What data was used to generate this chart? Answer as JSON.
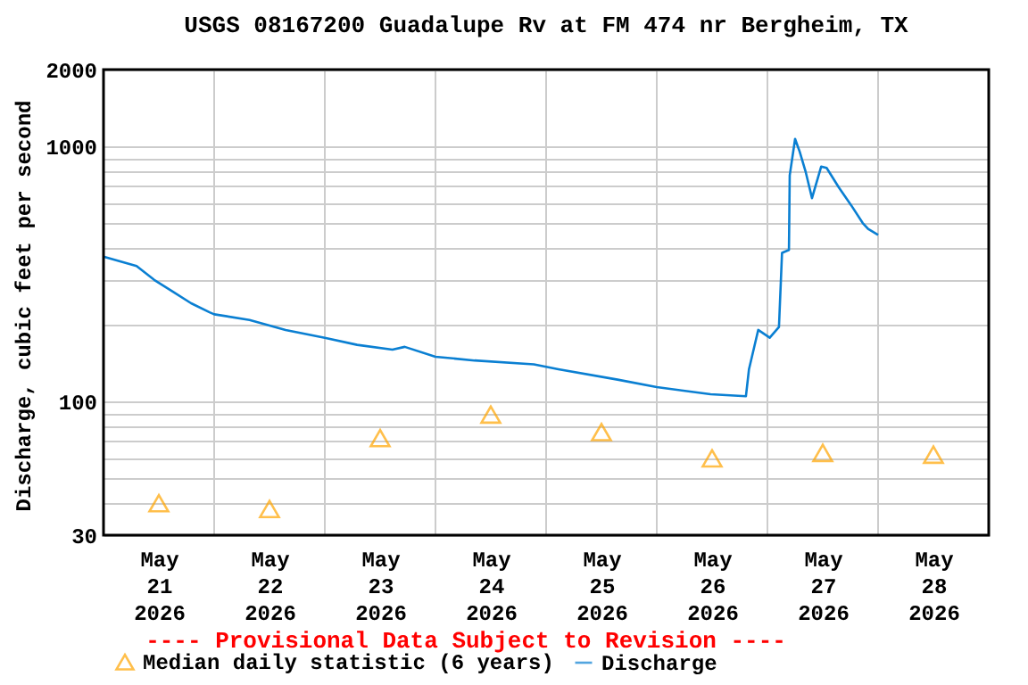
{
  "chart_data": {
    "type": "line",
    "title": "USGS 08167200 Guadalupe Rv at FM 474 nr Bergheim, TX",
    "ylabel": "Discharge, cubic feet per second",
    "annotations": [
      "---- Provisional Data Subject to Revision ----"
    ],
    "log": "y",
    "grid": true,
    "legend": "bottom",
    "xlim": [
      "2026-05-21T00:00",
      "2026-05-29T00:00"
    ],
    "xticks": [
      {
        "value": "2026-05-21T12:00",
        "label": "May 21 2026"
      },
      {
        "value": "2026-05-22T12:00",
        "label": "May 22 2026"
      },
      {
        "value": "2026-05-23T12:00",
        "label": "May 23 2026"
      },
      {
        "value": "2026-05-24T12:00",
        "label": "May 24 2026"
      },
      {
        "value": "2026-05-25T12:00",
        "label": "May 25 2026"
      },
      {
        "value": "2026-05-26T12:00",
        "label": "May 26 2026"
      },
      {
        "value": "2026-05-27T12:00",
        "label": "May 27 2026"
      },
      {
        "value": "2026-05-28T12:00",
        "label": "May 28 2026"
      },
      {
        "value": "2026-05-22T00:00",
        "label": null
      },
      {
        "value": "2026-05-23T00:00",
        "label": null
      },
      {
        "value": "2026-05-24T00:00",
        "label": null
      },
      {
        "value": "2026-05-25T00:00",
        "label": null
      },
      {
        "value": "2026-05-26T00:00",
        "label": null
      },
      {
        "value": "2026-05-27T00:00",
        "label": null
      },
      {
        "value": "2026-05-28T00:00",
        "label": null
      }
    ],
    "ylim": [
      30,
      2000
    ],
    "yticks": [
      30,
      {
        "value": 40,
        "label": null
      },
      {
        "value": 50,
        "label": null
      },
      {
        "value": 60,
        "label": null
      },
      {
        "value": 70,
        "label": null
      },
      {
        "value": 80,
        "label": null
      },
      {
        "value": 90,
        "label": null
      },
      100,
      {
        "value": 200,
        "label": null
      },
      {
        "value": 300,
        "label": null
      },
      {
        "value": 400,
        "label": null
      },
      {
        "value": 500,
        "label": null
      },
      {
        "value": 600,
        "label": null
      },
      {
        "value": 700,
        "label": null
      },
      {
        "value": 800,
        "label": null
      },
      {
        "value": 900,
        "label": null
      },
      1000,
      2000
    ],
    "series": [
      {
        "name": "Median daily statistic (6 years)",
        "type": "scatter",
        "marker": "triangle",
        "color": "#ffa500",
        "x": [
          "2026-05-21T12:00",
          "2026-05-22T12:00",
          "2026-05-23T12:00",
          "2026-05-24T12:00",
          "2026-05-25T12:00",
          "2026-05-26T12:00",
          "2026-05-27T12:00",
          "2026-05-28T12:00"
        ],
        "values": [
          40,
          38,
          72,
          89,
          76,
          60,
          63,
          62
        ]
      },
      {
        "name": "Discharge",
        "type": "line",
        "color": "#0a7fd2",
        "x": [
          "2026-05-21T00:00",
          "2026-05-21T07:10",
          "2026-05-21T11:00",
          "2026-05-21T15:00",
          "2026-05-21T19:00",
          "2026-05-21T23:00",
          "2026-05-22T00:00",
          "2026-05-22T07:40",
          "2026-05-22T15:30",
          "2026-05-23T00:00",
          "2026-05-23T07:00",
          "2026-05-23T14:40",
          "2026-05-23T17:20",
          "2026-05-24T00:00",
          "2026-05-24T08:30",
          "2026-05-24T21:20",
          "2026-05-25T02:40",
          "2026-05-25T15:30",
          "2026-05-26T00:00",
          "2026-05-26T11:40",
          "2026-05-26T19:20",
          "2026-05-26T20:00",
          "2026-05-26T22:00",
          "2026-05-27T00:30",
          "2026-05-27T02:30",
          "2026-05-27T03:10",
          "2026-05-27T04:40",
          "2026-05-27T04:50",
          "2026-05-27T06:00",
          "2026-05-27T07:00",
          "2026-05-27T08:20",
          "2026-05-27T09:40",
          "2026-05-27T11:40",
          "2026-05-27T12:50",
          "2026-05-27T15:30",
          "2026-05-27T18:10",
          "2026-05-27T20:40",
          "2026-05-27T21:50",
          "2026-05-28T00:00"
        ],
        "values": [
          370,
          340,
          300,
          270,
          243,
          224,
          220,
          209,
          191,
          178,
          167,
          160,
          164,
          150,
          145,
          140,
          134,
          122,
          114,
          107,
          105,
          134,
          191,
          178,
          196,
          383,
          393,
          770,
          1070,
          953,
          790,
          627,
          834,
          824,
          690,
          588,
          501,
          475,
          450
        ]
      }
    ]
  }
}
